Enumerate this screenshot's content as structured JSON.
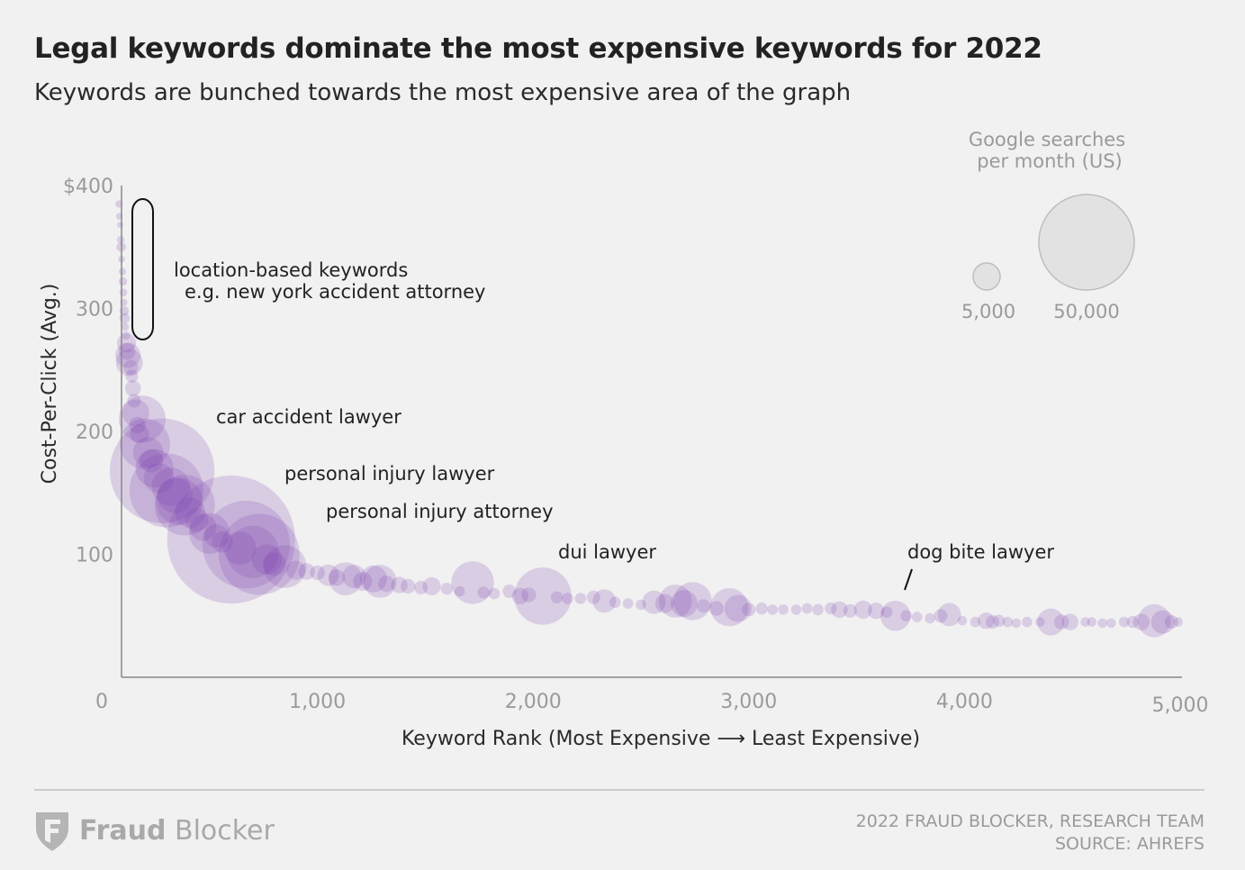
{
  "header": {
    "title": "Legal keywords dominate the most expensive keywords for 2022",
    "subtitle": "Keywords are bunched towards the most expensive area of the graph"
  },
  "footer": {
    "logo_word1": "Fraud",
    "logo_word2": " Blocker",
    "credit_line1": "2022 FRAUD BLOCKER, RESEARCH TEAM",
    "credit_line2": "SOURCE: AHREFS"
  },
  "chart_data": {
    "type": "scatter",
    "xlabel": "Keyword Rank (Most Expensive ⟶ Least Expensive)",
    "ylabel": "Cost-Per-Click (Avg.)",
    "xlim": [
      0,
      5000
    ],
    "ylim": [
      0,
      400
    ],
    "x_ticks": [
      {
        "value": 0,
        "label": "0"
      },
      {
        "value": 1000,
        "label": "1,000"
      },
      {
        "value": 2000,
        "label": "2,000"
      },
      {
        "value": 3000,
        "label": "3,000"
      },
      {
        "value": 4000,
        "label": "4,000"
      },
      {
        "value": 5000,
        "label": "5,000"
      }
    ],
    "y_ticks": [
      {
        "value": 400,
        "label": "$400"
      },
      {
        "value": 300,
        "label": "300"
      },
      {
        "value": 200,
        "label": "200"
      },
      {
        "value": 100,
        "label": "100"
      }
    ],
    "grid": false,
    "point_color": "#7b3fb0",
    "size_legend": {
      "title_line1": "Google searches",
      "title_line2": "per month (US)",
      "placement": "top-right",
      "items": [
        {
          "label": "5,000",
          "value": 5000
        },
        {
          "label": "50,000",
          "value": 50000
        }
      ]
    },
    "annotations": [
      {
        "text": "location-based keywords",
        "x": 250,
        "y": 335
      },
      {
        "text": "e.g. new york accident attorney",
        "x": 300,
        "y": 317
      },
      {
        "text": "car accident lawyer",
        "x": 450,
        "y": 215
      },
      {
        "text": "personal injury lawyer",
        "x": 770,
        "y": 168
      },
      {
        "text": "personal injury attorney",
        "x": 965,
        "y": 137
      },
      {
        "text": "dui lawyer",
        "x": 2065,
        "y": 104
      },
      {
        "text": "dog bite lawyer",
        "x": 3700,
        "y": 104
      }
    ],
    "points": [
      {
        "x": 80,
        "y": 385,
        "volume": 300
      },
      {
        "x": 82,
        "y": 375,
        "volume": 250
      },
      {
        "x": 86,
        "y": 368,
        "volume": 220
      },
      {
        "x": 88,
        "y": 356,
        "volume": 300
      },
      {
        "x": 90,
        "y": 350,
        "volume": 500
      },
      {
        "x": 92,
        "y": 340,
        "volume": 250
      },
      {
        "x": 96,
        "y": 330,
        "volume": 300
      },
      {
        "x": 98,
        "y": 322,
        "volume": 400
      },
      {
        "x": 100,
        "y": 313,
        "volume": 350
      },
      {
        "x": 102,
        "y": 305,
        "volume": 300
      },
      {
        "x": 104,
        "y": 298,
        "volume": 500
      },
      {
        "x": 106,
        "y": 292,
        "volume": 600
      },
      {
        "x": 108,
        "y": 285,
        "volume": 350
      },
      {
        "x": 112,
        "y": 278,
        "volume": 400
      },
      {
        "x": 115,
        "y": 272,
        "volume": 2000
      },
      {
        "x": 118,
        "y": 265,
        "volume": 1500
      },
      {
        "x": 122,
        "y": 262,
        "volume": 3500
      },
      {
        "x": 128,
        "y": 256,
        "volume": 4000
      },
      {
        "x": 135,
        "y": 252,
        "volume": 1200
      },
      {
        "x": 140,
        "y": 245,
        "volume": 900
      },
      {
        "x": 145,
        "y": 235,
        "volume": 1400
      },
      {
        "x": 150,
        "y": 225,
        "volume": 1000
      },
      {
        "x": 158,
        "y": 215,
        "volume": 4000
      },
      {
        "x": 165,
        "y": 205,
        "volume": 1500
      },
      {
        "x": 175,
        "y": 198,
        "volume": 2000
      },
      {
        "x": 188,
        "y": 210,
        "volume": 12000
      },
      {
        "x": 200,
        "y": 190,
        "volume": 14000
      },
      {
        "x": 215,
        "y": 183,
        "volume": 5000
      },
      {
        "x": 230,
        "y": 176,
        "volume": 3000
      },
      {
        "x": 245,
        "y": 170,
        "volume": 8000
      },
      {
        "x": 265,
        "y": 162,
        "volume": 5000
      },
      {
        "x": 280,
        "y": 168,
        "volume": 60000
      },
      {
        "x": 300,
        "y": 152,
        "volume": 30000
      },
      {
        "x": 320,
        "y": 155,
        "volume": 8000
      },
      {
        "x": 340,
        "y": 148,
        "volume": 7000
      },
      {
        "x": 360,
        "y": 143,
        "volume": 12000
      },
      {
        "x": 385,
        "y": 140,
        "volume": 20000
      },
      {
        "x": 410,
        "y": 134,
        "volume": 5000
      },
      {
        "x": 440,
        "y": 128,
        "volume": 3000
      },
      {
        "x": 470,
        "y": 122,
        "volume": 4000
      },
      {
        "x": 500,
        "y": 117,
        "volume": 9000
      },
      {
        "x": 530,
        "y": 115,
        "volume": 3000
      },
      {
        "x": 560,
        "y": 110,
        "volume": 2500
      },
      {
        "x": 600,
        "y": 112,
        "volume": 90000
      },
      {
        "x": 640,
        "y": 105,
        "volume": 6000
      },
      {
        "x": 670,
        "y": 108,
        "volume": 42000
      },
      {
        "x": 700,
        "y": 102,
        "volume": 15000
      },
      {
        "x": 730,
        "y": 100,
        "volume": 36000
      },
      {
        "x": 765,
        "y": 96,
        "volume": 5000
      },
      {
        "x": 800,
        "y": 92,
        "volume": 3000
      },
      {
        "x": 850,
        "y": 90,
        "volume": 10000
      },
      {
        "x": 900,
        "y": 87,
        "volume": 2000
      },
      {
        "x": 950,
        "y": 86,
        "volume": 1500
      },
      {
        "x": 1000,
        "y": 85,
        "volume": 1200
      },
      {
        "x": 1050,
        "y": 83,
        "volume": 2500
      },
      {
        "x": 1090,
        "y": 81,
        "volume": 1500
      },
      {
        "x": 1130,
        "y": 80,
        "volume": 6000
      },
      {
        "x": 1170,
        "y": 82,
        "volume": 3000
      },
      {
        "x": 1210,
        "y": 78,
        "volume": 2000
      },
      {
        "x": 1260,
        "y": 80,
        "volume": 4000
      },
      {
        "x": 1290,
        "y": 78,
        "volume": 6000
      },
      {
        "x": 1320,
        "y": 76,
        "volume": 1500
      },
      {
        "x": 1380,
        "y": 75,
        "volume": 1500
      },
      {
        "x": 1420,
        "y": 74,
        "volume": 1200
      },
      {
        "x": 1480,
        "y": 73,
        "volume": 1000
      },
      {
        "x": 1530,
        "y": 74,
        "volume": 1800
      },
      {
        "x": 1600,
        "y": 72,
        "volume": 800
      },
      {
        "x": 1660,
        "y": 70,
        "volume": 600
      },
      {
        "x": 1720,
        "y": 77,
        "volume": 10000
      },
      {
        "x": 1770,
        "y": 69,
        "volume": 800
      },
      {
        "x": 1820,
        "y": 68,
        "volume": 700
      },
      {
        "x": 1890,
        "y": 70,
        "volume": 1000
      },
      {
        "x": 1940,
        "y": 66,
        "volume": 1500
      },
      {
        "x": 1980,
        "y": 67,
        "volume": 1200
      },
      {
        "x": 2045,
        "y": 66,
        "volume": 18000
      },
      {
        "x": 2110,
        "y": 65,
        "volume": 800
      },
      {
        "x": 2160,
        "y": 64,
        "volume": 700
      },
      {
        "x": 2220,
        "y": 64,
        "volume": 700
      },
      {
        "x": 2280,
        "y": 65,
        "volume": 1000
      },
      {
        "x": 2330,
        "y": 62,
        "volume": 3000
      },
      {
        "x": 2380,
        "y": 61,
        "volume": 700
      },
      {
        "x": 2440,
        "y": 60,
        "volume": 600
      },
      {
        "x": 2500,
        "y": 59,
        "volume": 600
      },
      {
        "x": 2560,
        "y": 61,
        "volume": 3000
      },
      {
        "x": 2610,
        "y": 60,
        "volume": 2000
      },
      {
        "x": 2660,
        "y": 62,
        "volume": 6000
      },
      {
        "x": 2700,
        "y": 60,
        "volume": 4000
      },
      {
        "x": 2740,
        "y": 62,
        "volume": 8000
      },
      {
        "x": 2790,
        "y": 58,
        "volume": 1000
      },
      {
        "x": 2850,
        "y": 56,
        "volume": 1200
      },
      {
        "x": 2910,
        "y": 57,
        "volume": 8000
      },
      {
        "x": 2950,
        "y": 56,
        "volume": 4000
      },
      {
        "x": 3000,
        "y": 55,
        "volume": 1000
      },
      {
        "x": 3060,
        "y": 56,
        "volume": 800
      },
      {
        "x": 3110,
        "y": 55,
        "volume": 600
      },
      {
        "x": 3160,
        "y": 55,
        "volume": 600
      },
      {
        "x": 3220,
        "y": 55,
        "volume": 600
      },
      {
        "x": 3270,
        "y": 56,
        "volume": 600
      },
      {
        "x": 3320,
        "y": 55,
        "volume": 700
      },
      {
        "x": 3380,
        "y": 56,
        "volume": 800
      },
      {
        "x": 3420,
        "y": 55,
        "volume": 1500
      },
      {
        "x": 3470,
        "y": 54,
        "volume": 1000
      },
      {
        "x": 3530,
        "y": 55,
        "volume": 1800
      },
      {
        "x": 3590,
        "y": 54,
        "volume": 1500
      },
      {
        "x": 3640,
        "y": 53,
        "volume": 700
      },
      {
        "x": 3680,
        "y": 50,
        "volume": 5000
      },
      {
        "x": 3730,
        "y": 50,
        "volume": 700
      },
      {
        "x": 3780,
        "y": 49,
        "volume": 600
      },
      {
        "x": 3840,
        "y": 48,
        "volume": 600
      },
      {
        "x": 3890,
        "y": 50,
        "volume": 1000
      },
      {
        "x": 3930,
        "y": 51,
        "volume": 3000
      },
      {
        "x": 3990,
        "y": 46,
        "volume": 500
      },
      {
        "x": 4050,
        "y": 45,
        "volume": 600
      },
      {
        "x": 4100,
        "y": 46,
        "volume": 1500
      },
      {
        "x": 4130,
        "y": 45,
        "volume": 1000
      },
      {
        "x": 4160,
        "y": 46,
        "volume": 800
      },
      {
        "x": 4200,
        "y": 45,
        "volume": 600
      },
      {
        "x": 4240,
        "y": 44,
        "volume": 500
      },
      {
        "x": 4290,
        "y": 45,
        "volume": 600
      },
      {
        "x": 4350,
        "y": 45,
        "volume": 500
      },
      {
        "x": 4400,
        "y": 45,
        "volume": 4000
      },
      {
        "x": 4450,
        "y": 45,
        "volume": 1200
      },
      {
        "x": 4490,
        "y": 45,
        "volume": 1500
      },
      {
        "x": 4560,
        "y": 45,
        "volume": 500
      },
      {
        "x": 4590,
        "y": 45,
        "volume": 500
      },
      {
        "x": 4640,
        "y": 44,
        "volume": 500
      },
      {
        "x": 4680,
        "y": 44,
        "volume": 500
      },
      {
        "x": 4740,
        "y": 45,
        "volume": 600
      },
      {
        "x": 4780,
        "y": 45,
        "volume": 800
      },
      {
        "x": 4820,
        "y": 45,
        "volume": 1500
      },
      {
        "x": 4880,
        "y": 46,
        "volume": 6000
      },
      {
        "x": 4920,
        "y": 45,
        "volume": 3000
      },
      {
        "x": 4960,
        "y": 45,
        "volume": 1000
      },
      {
        "x": 4990,
        "y": 45,
        "volume": 500
      }
    ]
  }
}
